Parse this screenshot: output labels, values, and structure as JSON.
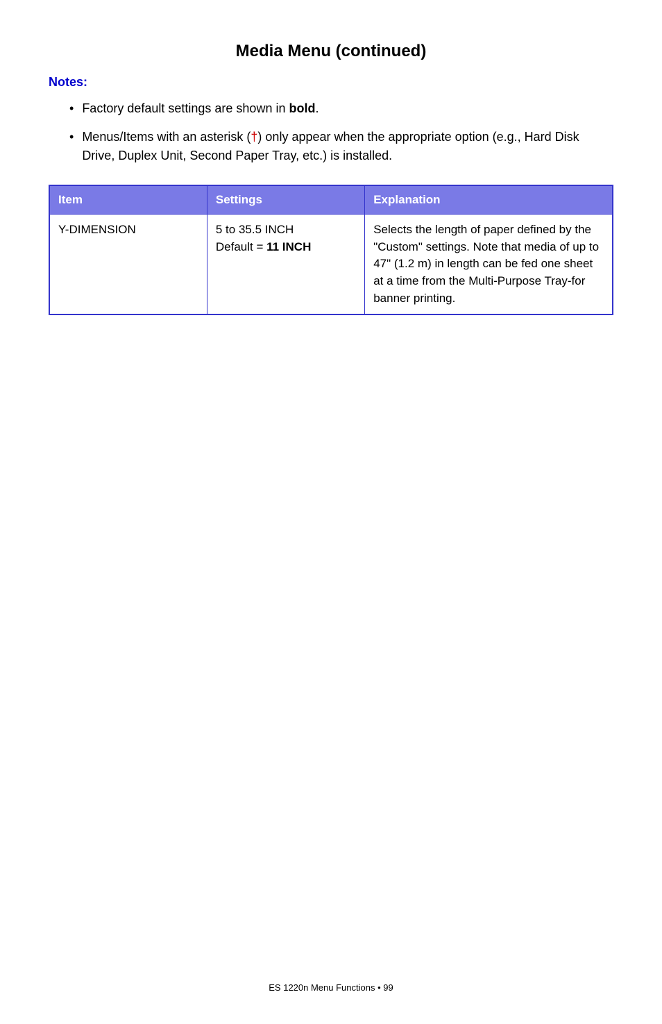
{
  "title": "Media Menu (continued)",
  "notes_label": "Notes:",
  "bullets": {
    "b1_pre": "Factory default settings are shown in ",
    "b1_bold": "bold",
    "b1_post": ".",
    "b2_pre": "Menus/Items with an asterisk (",
    "b2_dagger": "†",
    "b2_post": ") only appear when the appropriate option (e.g., Hard Disk Drive, Duplex Unit, Second Paper Tray, etc.) is installed."
  },
  "table": {
    "headers": {
      "item": "Item",
      "settings": "Settings",
      "explanation": "Explanation"
    },
    "row": {
      "item": "Y-DIMENSION",
      "settings_line1": "5 to 35.5 INCH",
      "settings_line2_pre": "Default = ",
      "settings_line2_bold": "11 INCH",
      "explanation": "Selects the length of paper defined by the \"Custom\" settings. Note that media of up to 47\" (1.2 m) in length can be fed one sheet at a time from the Multi-Purpose Tray-for banner printing."
    }
  },
  "footer": "ES 1220n Menu Functions  • 99"
}
